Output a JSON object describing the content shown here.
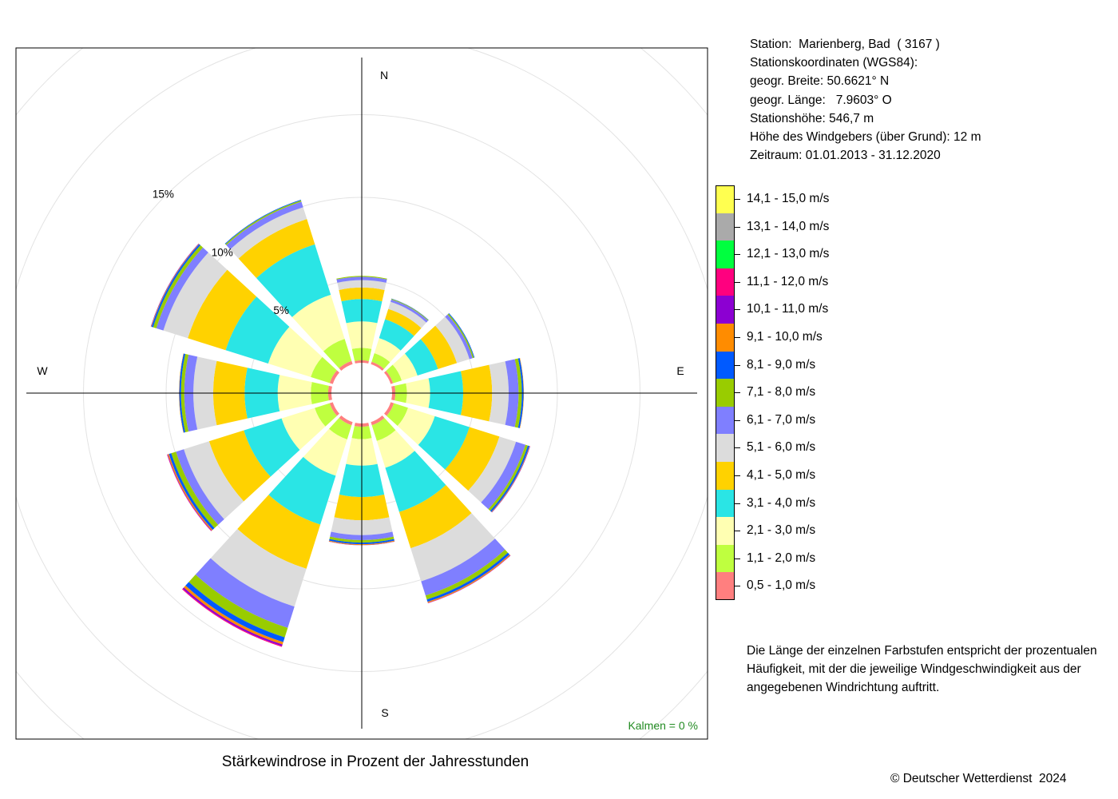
{
  "info": {
    "station": "Station:  Marienberg, Bad  ( 3167 )",
    "coords_heading": "Stationskoordinaten (WGS84):",
    "latitude": "geogr. Breite: 50.6621° N",
    "longitude": "geogr. Länge:   7.9603° O",
    "elevation": "Stationshöhe: 546,7 m",
    "sensor_height": "Höhe des Windgebers (über Grund): 12 m",
    "period": "Zeitraum: 01.01.2013 - 31.12.2020"
  },
  "note": "Die Länge der einzelnen Farbstufen entspricht der prozentualen Häufigkeit, mit der die jeweilige Windgeschwindigkeit aus der angegebenen Windrichtung auftritt.",
  "calm_label": "Kalmen  =  0 %",
  "copyright": "© Deutscher Wetterdienst  2024",
  "chart_data": {
    "type": "wind-rose",
    "title": "Stärkewindrose in Prozent der Jahresstunden",
    "directions_label": [
      "N",
      "E",
      "S",
      "W"
    ],
    "ring_labels": [
      "5%",
      "10%",
      "15%"
    ],
    "ring_values": [
      5,
      10,
      15
    ],
    "sectors_deg": [
      0,
      30,
      60,
      90,
      120,
      150,
      180,
      210,
      240,
      270,
      300,
      330
    ],
    "classes": [
      {
        "label": "0,5 - 1,0 m/s",
        "color": "#FF7F7F"
      },
      {
        "label": "1,1 - 2,0 m/s",
        "color": "#BFFF3F"
      },
      {
        "label": "2,1 - 3,0 m/s",
        "color": "#FFFFB2"
      },
      {
        "label": "3,1 - 4,0 m/s",
        "color": "#2AE5E5"
      },
      {
        "label": "4,1 - 5,0 m/s",
        "color": "#FFD200"
      },
      {
        "label": "5,1 - 6,0 m/s",
        "color": "#DCDCDC"
      },
      {
        "label": "6,1 - 7,0 m/s",
        "color": "#7F7FFF"
      },
      {
        "label": "7,1 - 8,0 m/s",
        "color": "#99CC00"
      },
      {
        "label": "8,1 - 9,0 m/s",
        "color": "#005AFF"
      },
      {
        "label": "9,1 - 10,0 m/s",
        "color": "#FF8C00"
      },
      {
        "label": "10,1 - 11,0 m/s",
        "color": "#8C00D2"
      },
      {
        "label": "11,1 - 12,0 m/s",
        "color": "#FF007F"
      },
      {
        "label": "12,1 - 13,0 m/s",
        "color": "#00FF3F"
      },
      {
        "label": "13,1 - 14,0 m/s",
        "color": "#AAAAAA"
      },
      {
        "label": "14,1 - 15,0 m/s",
        "color": "#FFFF50"
      }
    ],
    "series": [
      {
        "direction": 0,
        "values": [
          0.15,
          0.75,
          1.6,
          1.35,
          0.7,
          0.45,
          0.2,
          0.05,
          0,
          0,
          0,
          0,
          0,
          0,
          0
        ]
      },
      {
        "direction": 30,
        "values": [
          0.15,
          0.55,
          0.95,
          1.2,
          0.65,
          0.45,
          0.15,
          0.04,
          0.02,
          0,
          0,
          0,
          0,
          0,
          0
        ]
      },
      {
        "direction": 60,
        "values": [
          0.15,
          0.55,
          1.0,
          1.3,
          1.2,
          0.8,
          0.2,
          0.08,
          0.04,
          0,
          0,
          0,
          0,
          0,
          0
        ]
      },
      {
        "direction": 90,
        "values": [
          0.2,
          0.7,
          1.4,
          2.0,
          1.75,
          1.0,
          0.6,
          0.2,
          0.1,
          0.02,
          0,
          0,
          0,
          0,
          0
        ]
      },
      {
        "direction": 120,
        "values": [
          0.2,
          0.9,
          1.7,
          2.2,
          1.9,
          1.05,
          0.6,
          0.15,
          0.1,
          0.03,
          0.02,
          0,
          0,
          0,
          0
        ]
      },
      {
        "direction": 150,
        "values": [
          0.2,
          1.0,
          1.7,
          2.8,
          2.3,
          2.1,
          0.9,
          0.25,
          0.15,
          0.06,
          0.02,
          0.01,
          0,
          0,
          0
        ]
      },
      {
        "direction": 180,
        "values": [
          0.2,
          0.75,
          1.6,
          1.9,
          1.4,
          0.9,
          0.3,
          0.15,
          0.1,
          0.05,
          0.01,
          0,
          0,
          0,
          0
        ]
      },
      {
        "direction": 210,
        "values": [
          0.2,
          0.9,
          2.3,
          3.1,
          2.8,
          2.4,
          1.35,
          0.6,
          0.3,
          0.15,
          0.1,
          0.05,
          0,
          0,
          0
        ]
      },
      {
        "direction": 240,
        "values": [
          0.2,
          0.95,
          2.1,
          2.4,
          2.2,
          1.6,
          0.5,
          0.3,
          0.15,
          0.07,
          0.03,
          0.02,
          0,
          0,
          0
        ]
      },
      {
        "direction": 270,
        "values": [
          0.2,
          1.05,
          2.0,
          2.0,
          1.9,
          1.2,
          0.55,
          0.2,
          0.1,
          0.02,
          0,
          0,
          0,
          0,
          0
        ]
      },
      {
        "direction": 300,
        "values": [
          0.2,
          1.2,
          2.7,
          2.7,
          2.4,
          1.55,
          0.45,
          0.2,
          0.1,
          0.03,
          0.02,
          0,
          0,
          0,
          0
        ]
      },
      {
        "direction": 330,
        "values": [
          0.2,
          1.4,
          2.8,
          3.2,
          1.6,
          0.75,
          0.35,
          0.08,
          0.04,
          0,
          0,
          0,
          0,
          0,
          0
        ]
      }
    ],
    "calm_percent": 0
  }
}
